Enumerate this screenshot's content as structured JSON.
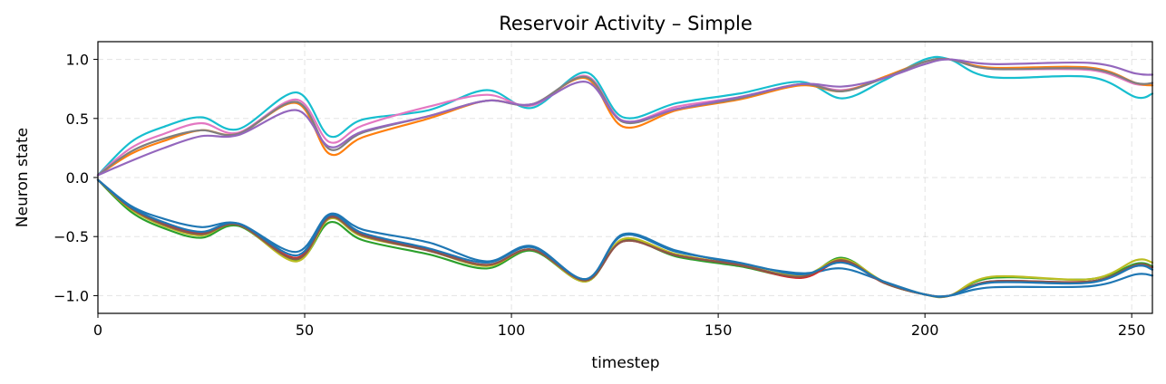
{
  "chart_data": {
    "type": "line",
    "title": "Reservoir Activity – Simple",
    "xlabel": "timestep",
    "ylabel": "Neuron state",
    "xlim": [
      0,
      255
    ],
    "ylim": [
      -1.15,
      1.15
    ],
    "xticks": [
      0,
      50,
      100,
      150,
      200,
      250
    ],
    "xtick_labels": [
      "0",
      "50",
      "100",
      "150",
      "200",
      "250"
    ],
    "yticks": [
      -1.0,
      -0.5,
      0.0,
      0.5,
      1.0
    ],
    "ytick_labels": [
      "−1.0",
      "−0.5",
      "0.0",
      "0.5",
      "1.0"
    ],
    "grid": true,
    "x": [
      0,
      8,
      16,
      25,
      34,
      48,
      56,
      64,
      80,
      94,
      105,
      118,
      127,
      140,
      155,
      170,
      180,
      190,
      200,
      206,
      216,
      240,
      251,
      255
    ],
    "series": [
      {
        "color": "#17becf",
        "values": [
          0.02,
          0.3,
          0.43,
          0.51,
          0.41,
          0.72,
          0.35,
          0.49,
          0.57,
          0.74,
          0.59,
          0.89,
          0.51,
          0.63,
          0.71,
          0.81,
          0.67,
          0.82,
          1.0,
          1.0,
          0.85,
          0.85,
          0.68,
          0.71
        ]
      },
      {
        "color": "#e377c2",
        "values": [
          0.02,
          0.25,
          0.37,
          0.46,
          0.38,
          0.66,
          0.3,
          0.44,
          0.6,
          0.7,
          0.61,
          0.86,
          0.48,
          0.6,
          0.68,
          0.79,
          0.74,
          0.84,
          0.98,
          1.0,
          0.92,
          0.91,
          0.79,
          0.8
        ]
      },
      {
        "color": "#ff7f0e",
        "values": [
          0.02,
          0.2,
          0.31,
          0.4,
          0.37,
          0.63,
          0.2,
          0.34,
          0.5,
          0.65,
          0.62,
          0.84,
          0.43,
          0.57,
          0.66,
          0.78,
          0.73,
          0.85,
          0.98,
          1.0,
          0.93,
          0.93,
          0.8,
          0.78
        ]
      },
      {
        "color": "#7f7f7f",
        "values": [
          0.02,
          0.22,
          0.33,
          0.4,
          0.37,
          0.64,
          0.24,
          0.38,
          0.52,
          0.65,
          0.62,
          0.85,
          0.47,
          0.58,
          0.67,
          0.79,
          0.73,
          0.84,
          0.98,
          1.0,
          0.92,
          0.92,
          0.8,
          0.8
        ]
      },
      {
        "color": "#9467bd",
        "values": [
          0.02,
          0.14,
          0.25,
          0.35,
          0.36,
          0.57,
          0.26,
          0.39,
          0.52,
          0.65,
          0.62,
          0.81,
          0.48,
          0.58,
          0.68,
          0.79,
          0.77,
          0.84,
          0.96,
          1.0,
          0.96,
          0.97,
          0.88,
          0.87
        ]
      },
      {
        "color": "#1f77b4",
        "values": [
          -0.02,
          -0.24,
          -0.35,
          -0.42,
          -0.39,
          -0.63,
          -0.31,
          -0.44,
          -0.55,
          -0.71,
          -0.58,
          -0.86,
          -0.48,
          -0.62,
          -0.73,
          -0.81,
          -0.77,
          -0.88,
          -0.99,
          -1.0,
          -0.93,
          -0.92,
          -0.82,
          -0.83
        ]
      },
      {
        "color": "#2ca02c",
        "values": [
          -0.02,
          -0.29,
          -0.43,
          -0.51,
          -0.41,
          -0.7,
          -0.38,
          -0.53,
          -0.65,
          -0.77,
          -0.62,
          -0.88,
          -0.53,
          -0.67,
          -0.75,
          -0.84,
          -0.68,
          -0.89,
          -0.99,
          -1.0,
          -0.85,
          -0.86,
          -0.73,
          -0.75
        ]
      },
      {
        "color": "#bcbd22",
        "values": [
          -0.02,
          -0.27,
          -0.41,
          -0.49,
          -0.4,
          -0.71,
          -0.35,
          -0.5,
          -0.62,
          -0.75,
          -0.61,
          -0.88,
          -0.52,
          -0.65,
          -0.74,
          -0.83,
          -0.69,
          -0.88,
          -0.99,
          -1.0,
          -0.84,
          -0.86,
          -0.7,
          -0.72
        ]
      },
      {
        "color": "#d62728",
        "values": [
          -0.02,
          -0.26,
          -0.39,
          -0.47,
          -0.4,
          -0.68,
          -0.33,
          -0.48,
          -0.61,
          -0.74,
          -0.61,
          -0.87,
          -0.54,
          -0.66,
          -0.74,
          -0.85,
          -0.71,
          -0.89,
          -0.99,
          -1.0,
          -0.88,
          -0.88,
          -0.75,
          -0.76
        ]
      },
      {
        "color": "#8c564b",
        "values": [
          -0.02,
          -0.26,
          -0.4,
          -0.48,
          -0.4,
          -0.69,
          -0.34,
          -0.49,
          -0.62,
          -0.74,
          -0.61,
          -0.87,
          -0.54,
          -0.66,
          -0.74,
          -0.84,
          -0.7,
          -0.89,
          -0.99,
          -1.0,
          -0.88,
          -0.88,
          -0.74,
          -0.76
        ]
      },
      {
        "color": "#1f77b4",
        "values": [
          -0.02,
          -0.25,
          -0.38,
          -0.46,
          -0.39,
          -0.66,
          -0.32,
          -0.47,
          -0.6,
          -0.72,
          -0.59,
          -0.86,
          -0.49,
          -0.63,
          -0.72,
          -0.82,
          -0.72,
          -0.88,
          -0.99,
          -1.0,
          -0.89,
          -0.89,
          -0.75,
          -0.78
        ]
      }
    ]
  }
}
